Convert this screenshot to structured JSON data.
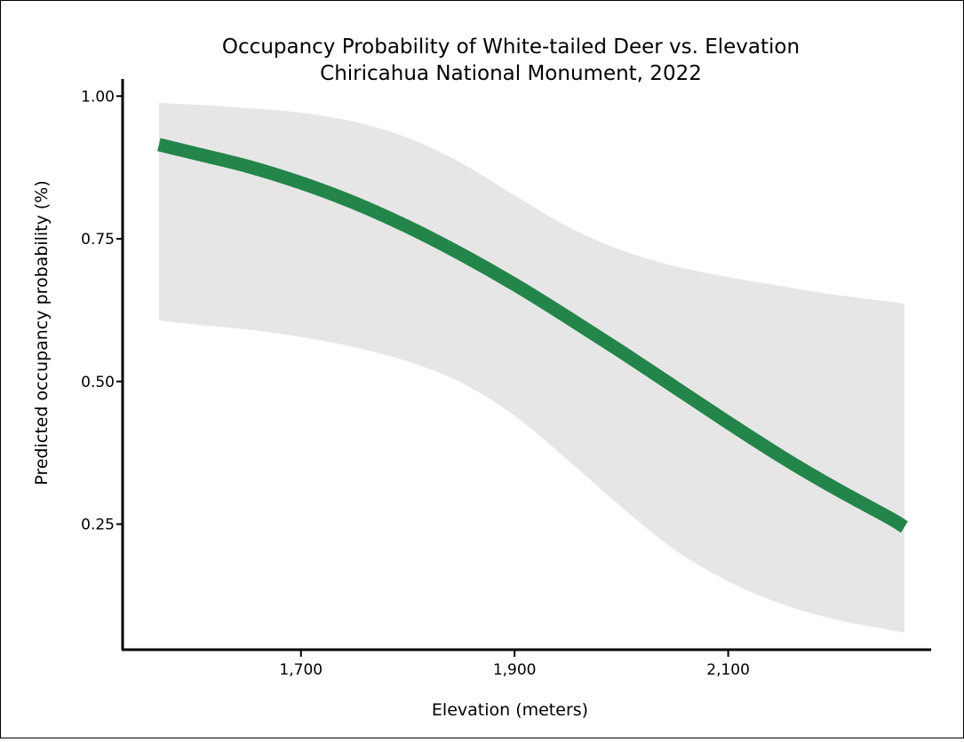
{
  "chart_data": {
    "type": "line",
    "title": "Occupancy Probability of White-tailed Deer vs. Elevation",
    "subtitle": "Chiricahua National Monument, 2022",
    "xlabel": "Elevation (meters)",
    "ylabel": "Predicted occupancy probability (%)",
    "xlim": [
      1533,
      2290
    ],
    "ylim": [
      0.03,
      1.03
    ],
    "x_ticks": [
      1700,
      1900,
      2100
    ],
    "x_tick_labels": [
      "1,700",
      "1,900",
      "2,100"
    ],
    "y_ticks": [
      0.25,
      0.5,
      0.75,
      1.0
    ],
    "y_tick_labels": [
      "0.25",
      "0.50",
      "0.75",
      "1.00"
    ],
    "grid": false,
    "legend": "none",
    "series": [
      {
        "values": [
          {
            "x": 1567,
            "y": 0.915
          },
          {
            "x": 1600,
            "y": 0.9
          },
          {
            "x": 1650,
            "y": 0.877
          },
          {
            "x": 1700,
            "y": 0.848
          },
          {
            "x": 1750,
            "y": 0.813
          },
          {
            "x": 1800,
            "y": 0.771
          },
          {
            "x": 1850,
            "y": 0.723
          },
          {
            "x": 1900,
            "y": 0.67
          },
          {
            "x": 1950,
            "y": 0.612
          },
          {
            "x": 2000,
            "y": 0.552
          },
          {
            "x": 2050,
            "y": 0.49
          },
          {
            "x": 2100,
            "y": 0.428
          },
          {
            "x": 2150,
            "y": 0.368
          },
          {
            "x": 2200,
            "y": 0.313
          },
          {
            "x": 2250,
            "y": 0.262
          },
          {
            "x": 2265,
            "y": 0.245
          }
        ]
      }
    ],
    "confidence_band": [
      {
        "x": 1567,
        "lower": 0.607,
        "upper": 0.988
      },
      {
        "x": 1600,
        "lower": 0.6,
        "upper": 0.985
      },
      {
        "x": 1650,
        "lower": 0.591,
        "upper": 0.979
      },
      {
        "x": 1700,
        "lower": 0.578,
        "upper": 0.971
      },
      {
        "x": 1750,
        "lower": 0.56,
        "upper": 0.955
      },
      {
        "x": 1800,
        "lower": 0.535,
        "upper": 0.927
      },
      {
        "x": 1850,
        "lower": 0.498,
        "upper": 0.883
      },
      {
        "x": 1900,
        "lower": 0.44,
        "upper": 0.826
      },
      {
        "x": 1950,
        "lower": 0.362,
        "upper": 0.771
      },
      {
        "x": 2000,
        "lower": 0.28,
        "upper": 0.73
      },
      {
        "x": 2050,
        "lower": 0.205,
        "upper": 0.702
      },
      {
        "x": 2100,
        "lower": 0.15,
        "upper": 0.683
      },
      {
        "x": 2150,
        "lower": 0.11,
        "upper": 0.667
      },
      {
        "x": 2200,
        "lower": 0.083,
        "upper": 0.652
      },
      {
        "x": 2250,
        "lower": 0.065,
        "upper": 0.64
      },
      {
        "x": 2265,
        "lower": 0.06,
        "upper": 0.636
      }
    ],
    "colors": {
      "line": "#23854a",
      "band": "#e6e6e6",
      "axis": "#000000"
    }
  }
}
